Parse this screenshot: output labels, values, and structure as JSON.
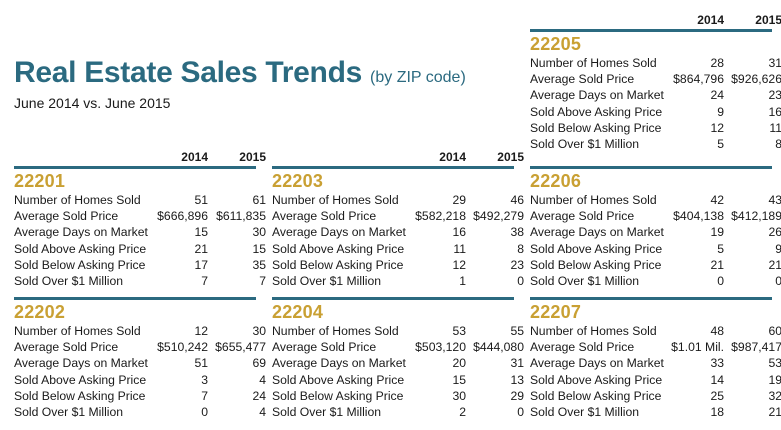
{
  "header": {
    "title": "Real Estate Sales Trends",
    "title_sub": "(by ZIP code)",
    "subtitle": "June 2014 vs. June 2015"
  },
  "years": [
    "2014",
    "2015"
  ],
  "labels": [
    "Number of Homes Sold",
    "Average Sold Price",
    "Average Days on Market",
    "Sold Above Asking Price",
    "Sold Below Asking Price",
    "Sold Over $1 Million"
  ],
  "zips": [
    {
      "zip": "22201",
      "values": [
        [
          "51",
          "61"
        ],
        [
          "$666,896",
          "$611,835"
        ],
        [
          "15",
          "30"
        ],
        [
          "21",
          "15"
        ],
        [
          "17",
          "35"
        ],
        [
          "7",
          "7"
        ]
      ]
    },
    {
      "zip": "22202",
      "values": [
        [
          "12",
          "30"
        ],
        [
          "$510,242",
          "$655,477"
        ],
        [
          "51",
          "69"
        ],
        [
          "3",
          "4"
        ],
        [
          "7",
          "24"
        ],
        [
          "0",
          "4"
        ]
      ]
    },
    {
      "zip": "22203",
      "values": [
        [
          "29",
          "46"
        ],
        [
          "$582,218",
          "$492,279"
        ],
        [
          "16",
          "38"
        ],
        [
          "11",
          "8"
        ],
        [
          "12",
          "23"
        ],
        [
          "1",
          "0"
        ]
      ]
    },
    {
      "zip": "22204",
      "values": [
        [
          "53",
          "55"
        ],
        [
          "$503,120",
          "$444,080"
        ],
        [
          "20",
          "31"
        ],
        [
          "15",
          "13"
        ],
        [
          "30",
          "29"
        ],
        [
          "2",
          "0"
        ]
      ]
    },
    {
      "zip": "22205",
      "values": [
        [
          "28",
          "31"
        ],
        [
          "$864,796",
          "$926,626"
        ],
        [
          "24",
          "23"
        ],
        [
          "9",
          "16"
        ],
        [
          "12",
          "11"
        ],
        [
          "5",
          "8"
        ]
      ]
    },
    {
      "zip": "22206",
      "values": [
        [
          "42",
          "43"
        ],
        [
          "$404,138",
          "$412,189"
        ],
        [
          "19",
          "26"
        ],
        [
          "5",
          "9"
        ],
        [
          "21",
          "21"
        ],
        [
          "0",
          "0"
        ]
      ]
    },
    {
      "zip": "22207",
      "values": [
        [
          "48",
          "60"
        ],
        [
          "$1.01 Mil.",
          "$987,417"
        ],
        [
          "33",
          "53"
        ],
        [
          "14",
          "19"
        ],
        [
          "25",
          "32"
        ],
        [
          "18",
          "21"
        ]
      ]
    }
  ]
}
